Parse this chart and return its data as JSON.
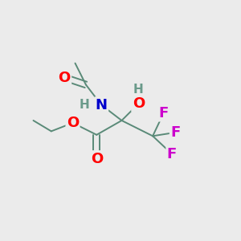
{
  "bg_color": "#ebebeb",
  "bond_color": "#5a8a78",
  "atom_colors": {
    "O": "#ff0000",
    "N": "#0000cc",
    "F": "#cc00cc",
    "H_gray": "#6a9a8a",
    "C": "#5a8a78"
  },
  "figsize": [
    3.0,
    3.0
  ],
  "dpi": 100
}
